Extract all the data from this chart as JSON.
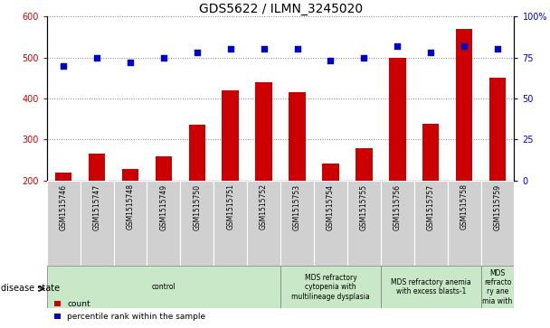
{
  "title": "GDS5622 / ILMN_3245020",
  "samples": [
    "GSM1515746",
    "GSM1515747",
    "GSM1515748",
    "GSM1515749",
    "GSM1515750",
    "GSM1515751",
    "GSM1515752",
    "GSM1515753",
    "GSM1515754",
    "GSM1515755",
    "GSM1515756",
    "GSM1515757",
    "GSM1515758",
    "GSM1515759"
  ],
  "counts": [
    220,
    265,
    228,
    258,
    335,
    420,
    440,
    415,
    242,
    278,
    500,
    338,
    570,
    450
  ],
  "percentiles": [
    70,
    75,
    72,
    75,
    78,
    80,
    80,
    80,
    73,
    75,
    82,
    78,
    82,
    80
  ],
  "bar_color": "#cc0000",
  "dot_color": "#0000cc",
  "ylim_left": [
    200,
    600
  ],
  "ylim_right": [
    0,
    100
  ],
  "yticks_left": [
    200,
    300,
    400,
    500,
    600
  ],
  "yticks_right": [
    0,
    25,
    50,
    75,
    100
  ],
  "disease_states": [
    {
      "label": "control",
      "start": 0,
      "end": 7,
      "color": "#c8e8c8"
    },
    {
      "label": "MDS refractory\ncytopenia with\nmultilineage dysplasia",
      "start": 7,
      "end": 10,
      "color": "#c8e8c8"
    },
    {
      "label": "MDS refractory anemia\nwith excess blasts-1",
      "start": 10,
      "end": 13,
      "color": "#c8e8c8"
    },
    {
      "label": "MDS\nrefracto\nry ane\nmia with",
      "start": 13,
      "end": 14,
      "color": "#c8e8c8"
    }
  ],
  "disease_state_label": "disease state",
  "legend_count_label": "count",
  "legend_percentile_label": "percentile rank within the sample",
  "plot_bg_color": "#ffffff",
  "sample_bg_color": "#d0d0d0",
  "title_fontsize": 10,
  "tick_fontsize": 7,
  "sample_fontsize": 5.5,
  "ds_fontsize": 5.5
}
